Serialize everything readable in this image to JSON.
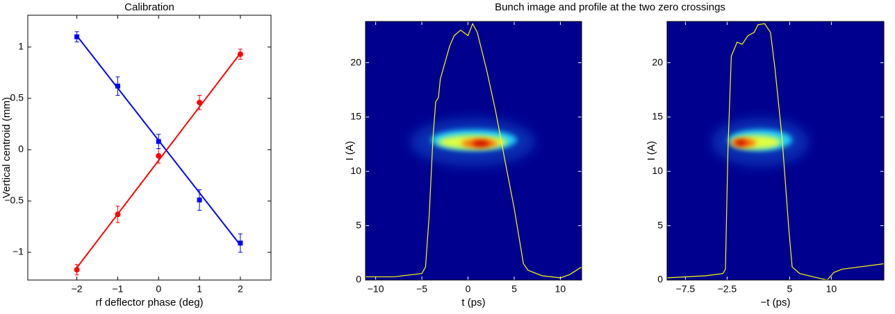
{
  "chart_data": [
    {
      "type": "scatter",
      "title": "Calibration",
      "xlabel": "rf deflector phase (deg)",
      "ylabel": "Vertical centroid (mm)",
      "x": [
        -2,
        -1,
        0,
        1,
        2
      ],
      "series": [
        {
          "color": "#ff0000",
          "marker": "circle",
          "values": [
            -1.17,
            -0.63,
            -0.06,
            0.46,
            0.93
          ],
          "errors": [
            0.05,
            0.08,
            0.07,
            0.07,
            0.05
          ],
          "fit": [
            -1.15,
            0.94
          ]
        },
        {
          "color": "#0000ff",
          "marker": "square",
          "values": [
            1.1,
            0.62,
            0.08,
            -0.49,
            -0.91
          ],
          "errors": [
            0.05,
            0.09,
            0.07,
            0.1,
            0.09
          ],
          "fit": [
            1.11,
            -0.93
          ]
        }
      ],
      "xlim": [
        -3.2,
        2.75
      ],
      "ylim": [
        -1.27,
        1.31
      ],
      "xticks": [
        {
          "value": -2,
          "label": "−2"
        },
        {
          "value": -1,
          "label": "−1"
        },
        0,
        1,
        2
      ],
      "yticks": [
        {
          "value": -1,
          "label": "−1"
        },
        {
          "value": -0.5,
          "label": "−0.5"
        },
        0,
        0.5,
        1
      ]
    },
    {
      "type": "line",
      "title": "Bunch image and profile at the two zero crossings",
      "xlabel": "t (ps)",
      "ylabel": "I (A)",
      "color": "#ffff00",
      "x": [
        -11.1,
        -8,
        -5,
        -4.6,
        -4.2,
        -3.8,
        -3.5,
        -3.2,
        -3,
        -2.5,
        -2,
        -1.5,
        -0.8,
        0,
        0.5,
        1,
        2,
        3,
        4,
        5,
        6,
        6.5,
        8,
        10,
        11,
        12.3
      ],
      "values": [
        0.3,
        0.3,
        0.6,
        1.2,
        6,
        13,
        16.4,
        16.8,
        18.5,
        20,
        21.5,
        22.5,
        23,
        22.5,
        23.6,
        22.8,
        19.4,
        15.5,
        11,
        6.6,
        1.5,
        0.9,
        0.4,
        0.2,
        0.5,
        1.2
      ],
      "xlim": [
        -11.1,
        12.3
      ],
      "ylim": [
        0,
        23.8
      ],
      "xticks": [
        {
          "value": -10,
          "label": "−10"
        },
        {
          "value": -5,
          "label": "−5"
        },
        0,
        5,
        10
      ],
      "yticks": [
        0,
        5,
        10,
        15,
        20
      ]
    },
    {
      "type": "line",
      "xlabel": "−t (ps)",
      "ylabel": "I (A)",
      "color": "#ffff00",
      "x": [
        -9.7,
        -5,
        -3,
        -2.7,
        -2.4,
        -2,
        -1.3,
        -0.7,
        0,
        0.75,
        1.2,
        2,
        2.7,
        3.25,
        4.1,
        4.9,
        5.3,
        6.2,
        7.8,
        9.5,
        10.3,
        11.3,
        16.3
      ],
      "values": [
        0.2,
        0.4,
        0.6,
        1,
        12,
        20.6,
        21.9,
        21.7,
        22.5,
        22.8,
        23.5,
        23.6,
        22.8,
        19.4,
        13,
        4.7,
        1.2,
        0.6,
        0.3,
        0,
        0.7,
        1,
        1.5
      ],
      "xlim": [
        -9.7,
        16.3
      ],
      "ylim": [
        0,
        23.8
      ],
      "xticks": [
        {
          "value": -7.5,
          "label": "−7.5"
        },
        {
          "value": -2.5,
          "label": "−2.5"
        },
        5,
        10
      ],
      "yticks": [
        0,
        5,
        10,
        15,
        20
      ]
    }
  ]
}
